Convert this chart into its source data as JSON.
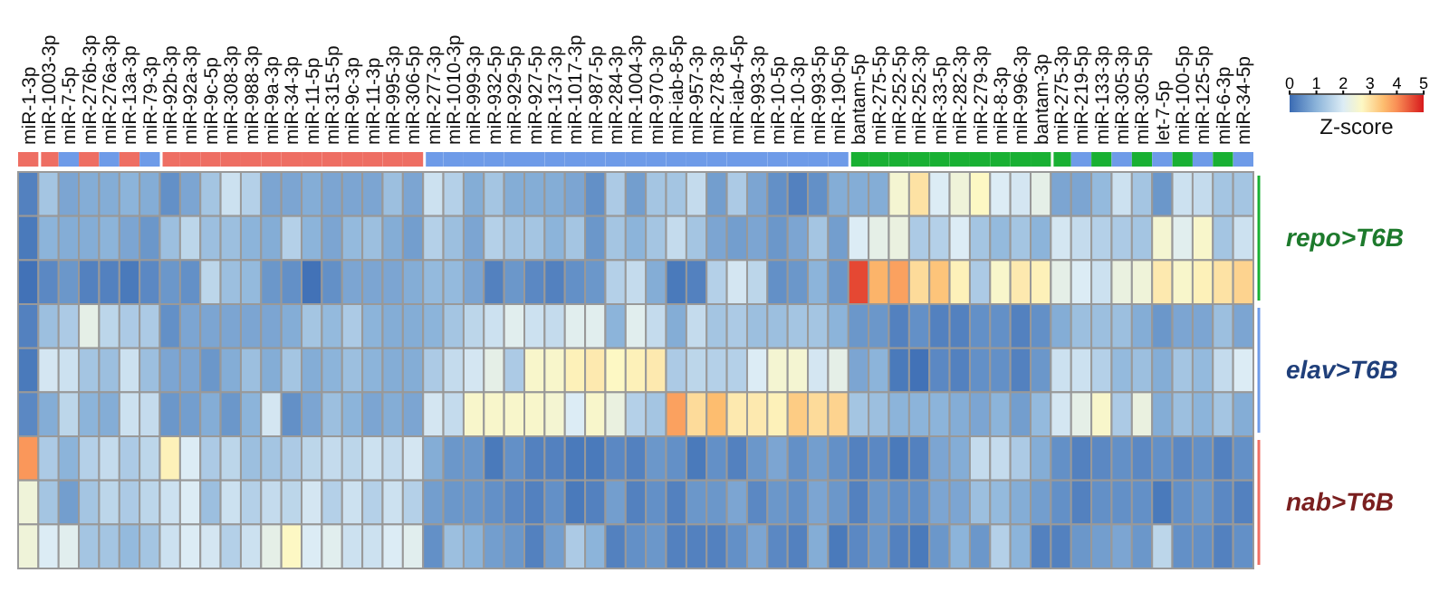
{
  "chart_data": {
    "type": "heatmap",
    "clabel": "Z-score",
    "clim": [
      0,
      5
    ],
    "cticks": [
      0,
      1,
      2,
      3,
      4,
      5
    ],
    "categories": [
      "miR-1-3p",
      "miR-1003-3p",
      "miR-7-5p",
      "miR-276b-3p",
      "miR-276a-3p",
      "miR-13a-3p",
      "miR-79-3p",
      "miR-92b-3p",
      "miR-92a-3p",
      "miR-9c-5p",
      "miR-308-3p",
      "miR-988-3p",
      "miR-9a-3p",
      "miR-34-3p",
      "miR-11-5p",
      "miR-315-5p",
      "miR-9c-3p",
      "miR-11-3p",
      "miR-995-3p",
      "miR-306-5p",
      "miR-277-3p",
      "miR-1010-3p",
      "miR-999-3p",
      "miR-932-5p",
      "miR-929-5p",
      "miR-927-5p",
      "miR-137-3p",
      "miR-1017-3p",
      "miR-987-5p",
      "miR-284-3p",
      "miR-1004-3p",
      "miR-970-3p",
      "miR-iab-8-5p",
      "miR-957-3p",
      "miR-278-3p",
      "miR-iab-4-5p",
      "miR-993-3p",
      "miR-10-5p",
      "miR-10-3p",
      "miR-993-5p",
      "miR-190-5p",
      "bantam-5p",
      "miR-275-5p",
      "miR-252-5p",
      "miR-252-3p",
      "miR-33-5p",
      "miR-282-3p",
      "miR-279-3p",
      "miR-8-3p",
      "miR-996-3p",
      "bantam-3p",
      "miR-275-3p",
      "miR-219-5p",
      "miR-133-3p",
      "miR-305-3p",
      "miR-305-5p",
      "let-7-5p",
      "miR-100-5p",
      "miR-125-5p",
      "miR-6-3p",
      "miR-34-5p"
    ],
    "y_categories": [
      null,
      null,
      null,
      null,
      null,
      null,
      null,
      null,
      null
    ],
    "y2_categories": [
      null,
      "repo>T6B",
      null,
      null,
      "elav>T6B",
      null,
      null,
      "nab>T6B",
      null
    ],
    "cells": [
      [
        0.3,
        1.3,
        0.8,
        0.9,
        0.9,
        1.0,
        0.9,
        0.5,
        0.8,
        1.3,
        1.8,
        1.5,
        0.8,
        0.8,
        0.9,
        0.8,
        0.8,
        0.8,
        1.2,
        0.8,
        1.8,
        1.5,
        0.9,
        1.3,
        0.9,
        0.9,
        0.9,
        0.8,
        0.5,
        1.4,
        0.7,
        1.3,
        1.3,
        1.7,
        0.7,
        1.4,
        0.8,
        0.5,
        0.3,
        0.5,
        0.9,
        0.9,
        0.9,
        2.5,
        3.0,
        2.0,
        2.4,
        2.7,
        2.0,
        1.9,
        2.2,
        0.8,
        0.8,
        1.1,
        1.8,
        1.3,
        0.6,
        1.8,
        1.7,
        1.3,
        1.3
      ],
      [
        0.2,
        1.0,
        0.9,
        0.9,
        1.0,
        0.8,
        0.6,
        1.2,
        1.6,
        1.2,
        1.2,
        1.0,
        0.9,
        1.5,
        1.0,
        0.8,
        1.1,
        1.2,
        0.9,
        0.7,
        1.5,
        1.2,
        0.8,
        1.5,
        1.3,
        1.3,
        1.0,
        1.3,
        0.6,
        1.3,
        1.0,
        1.3,
        1.7,
        1.3,
        0.8,
        0.7,
        0.8,
        0.6,
        0.8,
        1.3,
        0.7,
        2.0,
        2.2,
        2.3,
        1.4,
        1.5,
        2.0,
        1.3,
        1.1,
        1.3,
        1.0,
        1.9,
        1.7,
        1.5,
        1.4,
        1.3,
        2.5,
        2.1,
        2.6,
        1.3,
        1.8
      ],
      [
        0.1,
        0.4,
        0.6,
        0.3,
        0.3,
        0.2,
        0.4,
        0.6,
        0.5,
        1.6,
        1.2,
        1.1,
        0.6,
        0.5,
        0.1,
        0.5,
        0.8,
        0.8,
        0.8,
        0.9,
        1.1,
        1.1,
        0.8,
        0.3,
        0.6,
        0.4,
        0.3,
        0.5,
        0.6,
        1.5,
        1.7,
        0.9,
        0.2,
        0.3,
        1.5,
        1.9,
        1.6,
        0.5,
        0.6,
        1.0,
        0.6,
        4.6,
        3.6,
        3.8,
        3.1,
        3.4,
        2.8,
        1.4,
        2.6,
        2.9,
        2.8,
        2.2,
        2.0,
        1.8,
        2.3,
        2.4,
        2.9,
        2.6,
        2.8,
        3.0,
        3.2
      ],
      [
        0.3,
        1.2,
        1.4,
        2.2,
        1.6,
        1.4,
        1.4,
        0.5,
        0.8,
        0.8,
        0.8,
        0.8,
        0.8,
        0.9,
        1.3,
        1.1,
        1.4,
        1.0,
        0.9,
        0.9,
        1.0,
        1.3,
        1.6,
        1.8,
        2.1,
        1.8,
        1.7,
        2.1,
        2.1,
        1.0,
        2.1,
        1.7,
        0.9,
        1.7,
        1.3,
        1.4,
        1.2,
        1.2,
        1.3,
        1.3,
        1.0,
        0.6,
        0.6,
        0.3,
        0.5,
        0.3,
        0.3,
        0.5,
        0.5,
        0.3,
        0.5,
        0.9,
        1.2,
        1.2,
        1.2,
        0.9,
        0.6,
        0.8,
        0.8,
        1.2,
        0.8
      ],
      [
        0.2,
        1.9,
        1.8,
        1.3,
        1.2,
        1.8,
        1.2,
        0.8,
        0.8,
        0.6,
        0.9,
        1.2,
        0.9,
        1.3,
        0.9,
        1.0,
        1.2,
        1.0,
        0.9,
        0.9,
        1.4,
        1.7,
        1.9,
        2.2,
        1.4,
        2.6,
        2.6,
        2.8,
        2.9,
        2.7,
        2.8,
        2.9,
        1.4,
        1.6,
        1.5,
        1.5,
        2.0,
        2.5,
        2.5,
        1.9,
        2.2,
        0.8,
        1.0,
        0.2,
        0.1,
        0.4,
        0.3,
        0.5,
        0.5,
        0.3,
        0.6,
        1.8,
        1.8,
        1.5,
        1.1,
        1.2,
        0.9,
        1.3,
        1.1,
        1.7,
        2.0
      ],
      [
        0.4,
        0.9,
        1.6,
        1.0,
        0.9,
        1.8,
        1.7,
        0.6,
        0.7,
        0.9,
        0.6,
        1.0,
        1.9,
        0.5,
        0.8,
        1.2,
        1.0,
        0.8,
        0.9,
        0.8,
        1.9,
        1.7,
        2.6,
        2.6,
        2.6,
        2.6,
        2.5,
        2.0,
        2.6,
        2.3,
        1.5,
        1.3,
        3.8,
        3.1,
        3.5,
        2.9,
        2.9,
        2.8,
        3.3,
        3.1,
        3.2,
        1.3,
        1.2,
        1.0,
        1.0,
        1.0,
        0.9,
        0.8,
        1.0,
        0.7,
        1.1,
        1.9,
        2.2,
        2.6,
        1.4,
        2.3,
        0.9,
        1.2,
        1.0,
        1.3,
        0.9
      ],
      [
        3.9,
        1.4,
        1.0,
        1.5,
        1.7,
        1.4,
        1.6,
        2.8,
        2.0,
        1.4,
        1.6,
        1.2,
        1.3,
        1.4,
        1.6,
        1.7,
        1.6,
        1.8,
        1.7,
        1.9,
        0.9,
        0.6,
        0.6,
        0.2,
        0.5,
        0.3,
        0.3,
        0.2,
        0.2,
        0.4,
        0.3,
        0.6,
        0.5,
        0.2,
        0.5,
        0.3,
        0.6,
        0.8,
        0.5,
        0.7,
        0.5,
        0.3,
        0.4,
        0.2,
        0.3,
        0.8,
        0.9,
        1.7,
        1.7,
        1.4,
        0.9,
        0.5,
        0.3,
        0.4,
        0.5,
        0.4,
        0.5,
        0.4,
        0.5,
        0.3,
        0.5
      ],
      [
        2.4,
        1.3,
        0.7,
        1.3,
        1.6,
        1.4,
        1.6,
        1.8,
        2.0,
        1.2,
        1.8,
        1.5,
        1.7,
        1.6,
        1.9,
        1.5,
        1.8,
        1.5,
        1.8,
        1.5,
        0.7,
        0.6,
        0.6,
        0.5,
        0.4,
        0.3,
        0.5,
        0.2,
        0.3,
        0.7,
        0.3,
        0.5,
        0.3,
        0.6,
        0.6,
        0.8,
        0.4,
        0.6,
        0.5,
        0.8,
        0.6,
        0.3,
        0.6,
        0.5,
        0.5,
        0.8,
        0.8,
        1.2,
        1.1,
        0.9,
        0.7,
        0.5,
        0.3,
        0.5,
        0.5,
        0.5,
        0.2,
        0.5,
        0.6,
        0.4,
        0.3
      ],
      [
        2.4,
        2.0,
        2.1,
        1.3,
        1.3,
        1.1,
        1.3,
        1.8,
        2.0,
        1.9,
        1.5,
        1.8,
        2.2,
        2.7,
        2.0,
        2.1,
        1.8,
        1.8,
        2.0,
        2.1,
        0.5,
        1.2,
        1.0,
        0.7,
        0.6,
        0.3,
        0.7,
        1.4,
        1.0,
        0.3,
        0.5,
        0.6,
        0.3,
        0.3,
        0.3,
        0.5,
        0.8,
        0.4,
        0.3,
        0.9,
        0.2,
        0.4,
        0.6,
        0.3,
        0.2,
        0.6,
        1.0,
        0.6,
        1.5,
        1.0,
        0.3,
        0.3,
        0.6,
        0.7,
        0.8,
        0.6,
        1.6,
        0.5,
        0.5,
        0.3,
        0.5
      ]
    ]
  }
}
